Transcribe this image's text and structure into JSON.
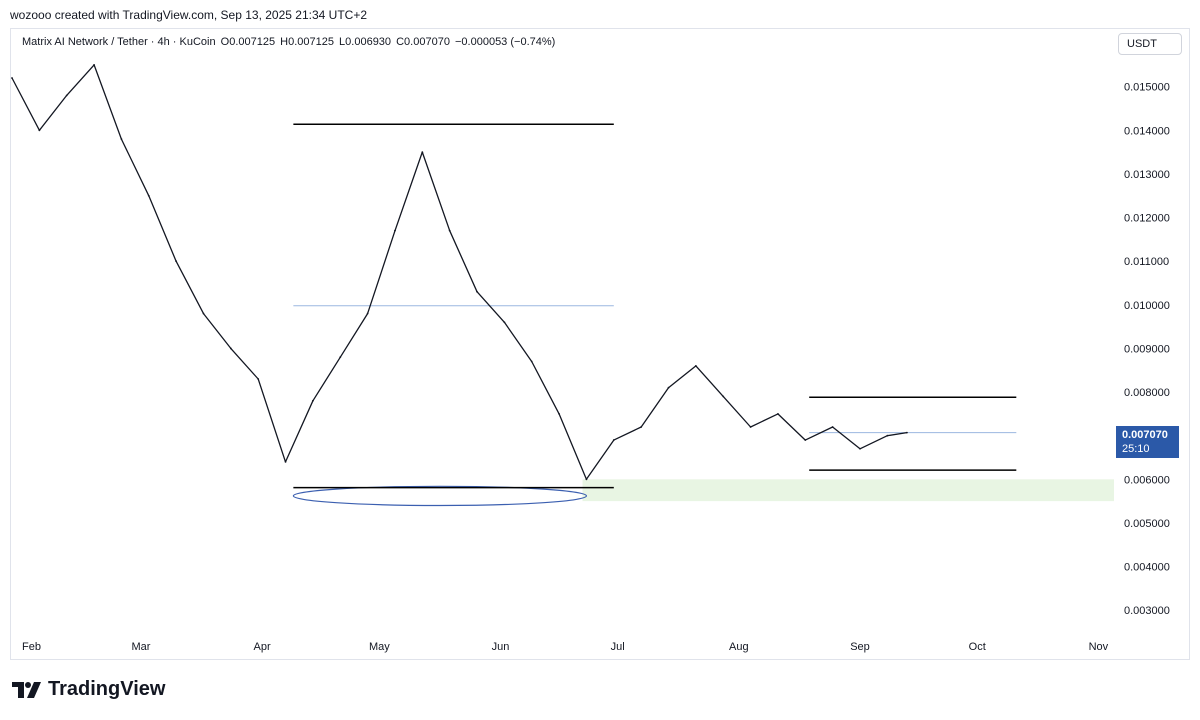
{
  "header": {
    "text": "wozooo created with TradingView.com, Sep 13, 2025 21:34 UTC+2"
  },
  "legend": {
    "symbol": "Matrix AI Network / Tether · 4h · KuCoin",
    "open": "O0.007125",
    "high": "H0.007125",
    "low": "L0.006930",
    "close": "C0.007070",
    "change": "−0.000053 (−0.74%)"
  },
  "currency_button": "USDT",
  "current_price": {
    "price": "0.007070",
    "countdown": "25:10",
    "value": 0.00707
  },
  "logo": {
    "name": "TradingView"
  },
  "colors": {
    "price_line": "#131722",
    "level_line": "#000000",
    "mid_line": "#9bb7e0",
    "zone": "#e8f5e3",
    "ellipse": "#3b5fb0",
    "tag": "#2b59a8",
    "grid_text": "#131722"
  },
  "chart_data": {
    "type": "line",
    "series": [
      {
        "x": [
          "2025-01-27",
          "2025-02-03",
          "2025-02-10",
          "2025-02-17",
          "2025-02-24",
          "2025-03-03",
          "2025-03-10",
          "2025-03-17",
          "2025-03-24",
          "2025-03-31",
          "2025-04-07",
          "2025-04-14",
          "2025-04-21",
          "2025-04-28",
          "2025-05-05",
          "2025-05-12",
          "2025-05-19",
          "2025-05-26",
          "2025-06-02",
          "2025-06-09",
          "2025-06-16",
          "2025-06-23",
          "2025-06-30",
          "2025-07-07",
          "2025-07-14",
          "2025-07-21",
          "2025-07-28",
          "2025-08-04",
          "2025-08-11",
          "2025-08-18",
          "2025-08-25",
          "2025-09-01",
          "2025-09-08",
          "2025-09-13"
        ],
        "values": [
          0.0152,
          0.014,
          0.0148,
          0.0155,
          0.0138,
          0.0125,
          0.011,
          0.0098,
          0.009,
          0.0083,
          0.0064,
          0.0078,
          0.0088,
          0.0098,
          0.0117,
          0.0135,
          0.0117,
          0.0103,
          0.0096,
          0.0087,
          0.0075,
          0.006,
          0.0069,
          0.0072,
          0.0081,
          0.0086,
          0.0079,
          0.0072,
          0.0075,
          0.0069,
          0.0072,
          0.0067,
          0.007,
          0.00707
        ]
      }
    ],
    "y_ticks": [
      "0.015000",
      "0.014000",
      "0.013000",
      "0.012000",
      "0.011000",
      "0.010000",
      "0.009000",
      "0.008000",
      "0.006000",
      "0.005000",
      "0.004000",
      "0.003000"
    ],
    "y_tick_values": [
      0.015,
      0.014,
      0.013,
      0.012,
      0.011,
      0.01,
      0.009,
      0.008,
      0.006,
      0.005,
      0.004,
      0.003
    ],
    "x_ticks": [
      "Feb",
      "Mar",
      "Apr",
      "May",
      "Jun",
      "Jul",
      "Aug",
      "Sep",
      "Oct",
      "Nov"
    ],
    "x_tick_dates": [
      "2025-02-01",
      "2025-03-01",
      "2025-04-01",
      "2025-05-01",
      "2025-06-01",
      "2025-07-01",
      "2025-08-01",
      "2025-09-01",
      "2025-10-01",
      "2025-11-01"
    ],
    "xlim": [
      "2025-01-27",
      "2025-11-05"
    ],
    "ylim": [
      0.0025,
      0.0163
    ],
    "grid": false,
    "drawings": {
      "hlines": [
        {
          "y": 0.01414,
          "from": "2025-04-09",
          "to": "2025-06-30",
          "style": "solid"
        },
        {
          "y": 0.00998,
          "from": "2025-04-09",
          "to": "2025-06-30",
          "style": "mid"
        },
        {
          "y": 0.00581,
          "from": "2025-04-09",
          "to": "2025-06-30",
          "style": "solid"
        },
        {
          "y": 0.00788,
          "from": "2025-08-19",
          "to": "2025-10-11",
          "style": "solid"
        },
        {
          "y": 0.00621,
          "from": "2025-08-19",
          "to": "2025-10-11",
          "style": "solid"
        },
        {
          "y": 0.00707,
          "from": "2025-08-19",
          "to": "2025-10-11",
          "style": "mid"
        }
      ],
      "zone": {
        "y_top": 0.006,
        "y_bottom": 0.0055,
        "from": "2025-06-22",
        "to": "2025-11-05"
      },
      "ellipse": {
        "from": "2025-04-09",
        "to": "2025-06-23",
        "y_center": 0.00562,
        "y_radius": 0.00022
      }
    }
  }
}
